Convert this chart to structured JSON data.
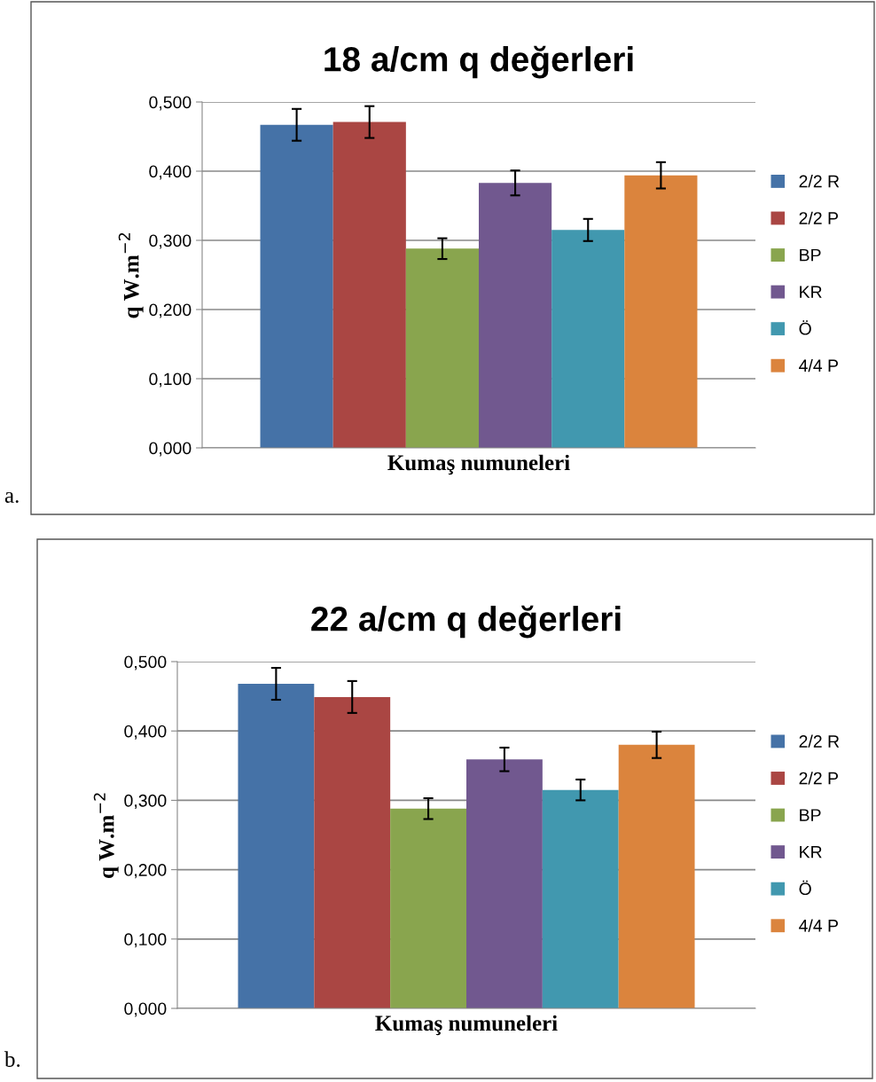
{
  "chart_data": [
    {
      "type": "bar",
      "title": "18 a/cm q değerleri",
      "xlabel": "Kumaş numuneleri",
      "ylabel": "q W.m$^{−2}$",
      "categories": [
        null
      ],
      "ylim": [
        0,
        0.5
      ],
      "yticks": [
        {
          "value": 0,
          "label": "0,000"
        },
        {
          "value": 0.1,
          "label": "0,100"
        },
        {
          "value": 0.2,
          "label": "0,200"
        },
        {
          "value": 0.3,
          "label": "0,300"
        },
        {
          "value": 0.4,
          "label": "0,400"
        },
        {
          "value": 0.5,
          "label": "0,500"
        }
      ],
      "grid": "y",
      "legend": "right",
      "annotations": [
        "a."
      ],
      "series": [
        {
          "name": "2/2 R",
          "color": "#4572a7",
          "values": [
            0.467
          ],
          "errors": [
            0.023
          ]
        },
        {
          "name": "2/2 P",
          "color": "#aa4643",
          "values": [
            0.471
          ],
          "errors": [
            0.023
          ]
        },
        {
          "name": "BP",
          "color": "#89a54e",
          "values": [
            0.288
          ],
          "errors": [
            0.015
          ]
        },
        {
          "name": "KR",
          "color": "#71588f",
          "values": [
            0.383
          ],
          "errors": [
            0.018
          ]
        },
        {
          "name": "Ö",
          "color": "#4198af",
          "values": [
            0.315
          ],
          "errors": [
            0.016
          ]
        },
        {
          "name": "4/4 P",
          "color": "#db843d",
          "values": [
            0.394
          ],
          "errors": [
            0.019
          ]
        }
      ]
    },
    {
      "type": "bar",
      "title": "22 a/cm q değerleri",
      "xlabel": "Kumaş numuneleri",
      "ylabel": "q W.m$^{−2}$",
      "categories": [
        null
      ],
      "ylim": [
        0,
        0.5
      ],
      "yticks": [
        {
          "value": 0,
          "label": "0,000"
        },
        {
          "value": 0.1,
          "label": "0,100"
        },
        {
          "value": 0.2,
          "label": "0,200"
        },
        {
          "value": 0.3,
          "label": "0,300"
        },
        {
          "value": 0.4,
          "label": "0,400"
        },
        {
          "value": 0.5,
          "label": "0,500"
        }
      ],
      "grid": "y",
      "legend": "right",
      "annotations": [
        "b."
      ],
      "series": [
        {
          "name": "2/2 R",
          "color": "#4572a7",
          "values": [
            0.468
          ],
          "errors": [
            0.023
          ]
        },
        {
          "name": "2/2 P",
          "color": "#aa4643",
          "values": [
            0.449
          ],
          "errors": [
            0.023
          ]
        },
        {
          "name": "BP",
          "color": "#89a54e",
          "values": [
            0.288
          ],
          "errors": [
            0.015
          ]
        },
        {
          "name": "KR",
          "color": "#71588f",
          "values": [
            0.359
          ],
          "errors": [
            0.017
          ]
        },
        {
          "name": "Ö",
          "color": "#4198af",
          "values": [
            0.315
          ],
          "errors": [
            0.015
          ]
        },
        {
          "name": "4/4 P",
          "color": "#db843d",
          "values": [
            0.38
          ],
          "errors": [
            0.019
          ]
        }
      ]
    }
  ]
}
